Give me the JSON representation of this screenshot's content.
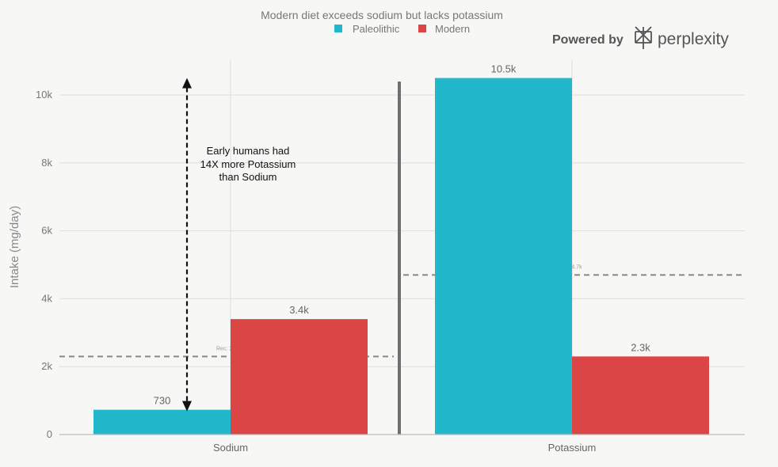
{
  "branding": {
    "powered_by": "Powered by",
    "brand": "perplexity"
  },
  "chart_data": {
    "type": "bar",
    "title": "Modern diet exceeds sodium but lacks potassium",
    "ylabel": "Intake (mg/day)",
    "xlabel": "",
    "categories": [
      "Sodium",
      "Potassium"
    ],
    "series": [
      {
        "name": "Paleolithic",
        "color": "#21b8cc",
        "values": [
          730,
          10500
        ],
        "labels": [
          "730",
          "10.5k"
        ]
      },
      {
        "name": "Modern",
        "color": "#dc4545",
        "values": [
          3400,
          2300
        ],
        "labels": [
          "3.4k",
          "2.3k"
        ]
      }
    ],
    "ylim": [
      0,
      10700
    ],
    "yticks": [
      0,
      2000,
      4000,
      6000,
      8000,
      10000
    ],
    "ytick_labels": [
      "0",
      "2k",
      "4k",
      "6k",
      "8k",
      "10k"
    ],
    "grid": true,
    "legend_position": "top-center",
    "reference_lines": [
      {
        "category": "Sodium",
        "value": 2300,
        "label": "Rec: 2.3k"
      },
      {
        "category": "Potassium",
        "value": 4700,
        "label": "Rec: 4.7k"
      }
    ],
    "annotation": {
      "lines": [
        "Early humans had",
        "14X more Potassium",
        "than Sodium"
      ],
      "arrow_from": 730,
      "arrow_to": 10500
    }
  }
}
